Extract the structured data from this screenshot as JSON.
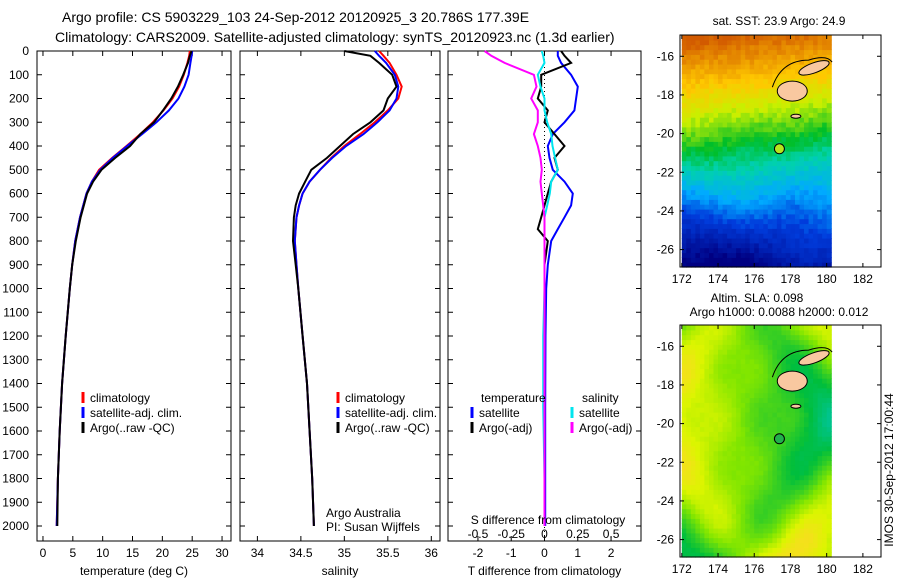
{
  "header": {
    "line1": "Argo profile: CS 5903229_103 24-Sep-2012 20120925_3 20.786S 177.39E",
    "line2": "Climatology: CARS2009. Satellite-adjusted climatology: synTS_20120923.nc (1.3d earlier)"
  },
  "footer_stamp": "IMOS 30-Sep-2012 17:00:44",
  "colors": {
    "climatology": "#ff0000",
    "satellite": "#0000ff",
    "argo": "#000000",
    "s_satellite": "#00e5ee",
    "s_argo": "#ff00ff"
  },
  "chart_data": [
    {
      "type": "line",
      "id": "temperature",
      "xlabel": "temperature (deg C)",
      "ylabel": "",
      "xlim": [
        -1,
        31.5
      ],
      "ylim": [
        2060,
        0
      ],
      "xticks": [
        0,
        5,
        10,
        15,
        20,
        25,
        30
      ],
      "yticks": [
        0,
        100,
        200,
        300,
        400,
        500,
        600,
        700,
        800,
        900,
        1000,
        1100,
        1200,
        1300,
        1400,
        1500,
        1600,
        1700,
        1800,
        1900,
        2000
      ],
      "legend": [
        "climatology",
        "satellite-adj. clim.",
        "Argo(..raw -QC)"
      ],
      "depth": [
        0,
        20,
        50,
        100,
        150,
        200,
        250,
        300,
        350,
        400,
        450,
        500,
        550,
        600,
        700,
        800,
        900,
        1000,
        1200,
        1400,
        1600,
        1800,
        2000
      ],
      "series": [
        {
          "name": "climatology",
          "values": [
            24.6,
            24.5,
            24.2,
            23.6,
            22.8,
            21.7,
            20.2,
            18.4,
            16.3,
            14.0,
            11.6,
            9.4,
            8.2,
            7.3,
            6.2,
            5.4,
            4.9,
            4.5,
            3.8,
            3.2,
            2.8,
            2.5,
            2.3
          ]
        },
        {
          "name": "satellite-adj. clim.",
          "values": [
            25.0,
            24.9,
            24.7,
            24.4,
            23.7,
            22.7,
            21.1,
            19.0,
            16.6,
            14.1,
            11.7,
            9.6,
            8.2,
            7.3,
            6.2,
            5.4,
            4.9,
            4.5,
            3.8,
            3.2,
            2.8,
            2.5,
            2.3
          ]
        },
        {
          "name": "Argo(..raw -QC)",
          "values": [
            24.9,
            24.6,
            24.3,
            23.5,
            22.6,
            21.5,
            20.1,
            18.6,
            16.3,
            14.6,
            12.1,
            9.8,
            8.4,
            7.4,
            6.3,
            5.5,
            4.9,
            4.5,
            3.8,
            3.2,
            2.8,
            2.5,
            2.4
          ]
        }
      ]
    },
    {
      "type": "line",
      "id": "salinity",
      "xlabel": "salinity",
      "xlim": [
        33.8,
        36.1
      ],
      "ylim": [
        2060,
        0
      ],
      "xticks": [
        34,
        34.5,
        35,
        35.5,
        36
      ],
      "legend": [
        "climatology",
        "satellite-adj. clim.",
        "Argo(..raw -QC)"
      ],
      "annotation": [
        "Argo Australia",
        "PI: Susan Wijffels"
      ],
      "depth": [
        0,
        20,
        50,
        100,
        150,
        200,
        250,
        300,
        350,
        400,
        450,
        500,
        550,
        600,
        650,
        700,
        800,
        900,
        1000,
        1200,
        1400,
        1600,
        1800,
        2000
      ],
      "series": [
        {
          "name": "climatology",
          "values": [
            35.4,
            35.45,
            35.52,
            35.6,
            35.66,
            35.62,
            35.5,
            35.35,
            35.18,
            35.0,
            34.85,
            34.72,
            34.6,
            34.52,
            34.48,
            34.45,
            34.43,
            34.45,
            34.47,
            34.52,
            34.57,
            34.6,
            34.63,
            34.65
          ]
        },
        {
          "name": "satellite-adj. clim.",
          "values": [
            35.35,
            35.4,
            35.48,
            35.58,
            35.62,
            35.6,
            35.52,
            35.38,
            35.22,
            35.02,
            34.86,
            34.72,
            34.6,
            34.52,
            34.48,
            34.45,
            34.43,
            34.45,
            34.47,
            34.52,
            34.57,
            34.6,
            34.63,
            34.65
          ]
        },
        {
          "name": "Argo(..raw -QC)",
          "values": [
            35.0,
            35.3,
            35.4,
            35.55,
            35.6,
            35.5,
            35.45,
            35.3,
            35.1,
            34.95,
            34.8,
            34.62,
            34.55,
            34.48,
            34.44,
            34.42,
            34.41,
            34.44,
            34.47,
            34.52,
            34.57,
            34.6,
            34.63,
            34.65
          ]
        }
      ]
    },
    {
      "type": "line",
      "id": "differences",
      "xlabel": "T difference from climatology",
      "x2label": "S difference from climatology",
      "xlim": [
        -2.9,
        2.9
      ],
      "x2lim": [
        -0.725,
        0.725
      ],
      "ylim": [
        2060,
        0
      ],
      "xticks": [
        -2,
        -1,
        0,
        1,
        2
      ],
      "x2ticks": [
        -0.5,
        -0.25,
        0,
        0.25,
        0.5
      ],
      "x2ticklabels": [
        "-0.5",
        "-0.25",
        "0",
        "0.25",
        "0.5"
      ],
      "legend": {
        "temperature_title": "temperature",
        "salinity_title": "salinity",
        "t_satellite": "satellite",
        "t_argo": "Argo(-adj)",
        "s_satellite": "satellite",
        "s_argo": "Argo(-adj)"
      },
      "depth": [
        0,
        20,
        50,
        100,
        150,
        200,
        250,
        300,
        350,
        400,
        450,
        500,
        550,
        600,
        650,
        700,
        750,
        800,
        900,
        1000,
        1200,
        1500,
        1800,
        2000
      ],
      "series": [
        {
          "name": "T satellite",
          "axis": "T",
          "values": [
            0.4,
            0.4,
            0.5,
            0.8,
            1.0,
            0.95,
            0.9,
            0.6,
            0.25,
            0.1,
            0.15,
            0.25,
            0.6,
            0.85,
            0.8,
            0.6,
            0.4,
            0.2,
            0.1,
            0.05,
            0.03,
            0.02,
            0.02,
            0.02
          ]
        },
        {
          "name": "T Argo(-adj)",
          "axis": "T",
          "values": [
            0.5,
            0.6,
            0.8,
            -0.1,
            -0.1,
            -0.2,
            0.1,
            0.0,
            0.3,
            0.6,
            0.3,
            0.4,
            0.2,
            0.1,
            0.0,
            -0.1,
            -0.2,
            0.1,
            0.0,
            0.0,
            0.0,
            0.0,
            0.0,
            0.0
          ]
        },
        {
          "name": "S satellite",
          "axis": "S",
          "values": [
            -0.02,
            -0.01,
            0.0,
            -0.05,
            -0.03,
            0.0,
            0.0,
            0.02,
            0.05,
            0.06,
            0.08,
            0.1,
            0.05,
            0.04,
            0.02,
            0.0,
            0.0,
            0.0,
            0.0,
            0.0,
            -0.01,
            -0.01,
            0.0,
            0.0
          ]
        },
        {
          "name": "S Argo(-adj)",
          "axis": "S",
          "values": [
            -0.45,
            -0.4,
            -0.3,
            -0.08,
            -0.06,
            -0.1,
            -0.05,
            -0.05,
            -0.08,
            -0.05,
            -0.03,
            -0.02,
            -0.03,
            -0.02,
            -0.01,
            0.0,
            0.0,
            0.0,
            0.0,
            0.0,
            0.0,
            0.0,
            0.0,
            0.0
          ]
        }
      ]
    },
    {
      "type": "heatmap",
      "id": "sst-map",
      "title": "sat. SST: 23.9 Argo: 24.9",
      "xlim": [
        171.9,
        183
      ],
      "ylim": [
        -26.9,
        -14.9
      ],
      "xticks": [
        172,
        174,
        176,
        178,
        180,
        182
      ],
      "yticks": [
        -16,
        -18,
        -20,
        -22,
        -24,
        -26
      ],
      "float_position": {
        "lon": 177.39,
        "lat": -20.786
      }
    },
    {
      "type": "heatmap",
      "id": "sla-map",
      "title": "Altim. SLA: 0.098",
      "subtitle": "Argo h1000: 0.0088 h2000: 0.012",
      "xlim": [
        171.9,
        183
      ],
      "ylim": [
        -26.9,
        -14.9
      ],
      "xticks": [
        172,
        174,
        176,
        178,
        180,
        182
      ],
      "yticks": [
        -16,
        -18,
        -20,
        -22,
        -24,
        -26
      ],
      "float_position": {
        "lon": 177.39,
        "lat": -20.786
      }
    }
  ]
}
